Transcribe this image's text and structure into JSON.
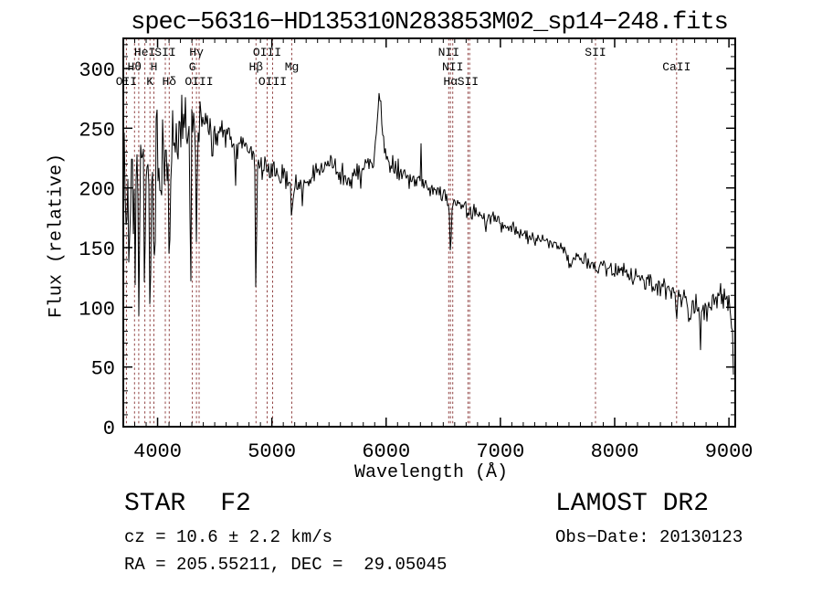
{
  "title": "spec−56316−HD135310N283853M02_sp14−248.fits",
  "footer": {
    "class_label": "STAR",
    "subclass": "F2",
    "cz_line": "cz = 10.6 ± 2.2 km/s",
    "radec_line": "RA = 205.55211, DEC =  29.05045",
    "survey": "LAMOST DR2",
    "obsdate_line": "Obs−Date: 20130123"
  },
  "chart_data": {
    "type": "line",
    "title": "spec−56316−HD135310N283853M02_sp14−248.fits",
    "xlabel": "Wavelength (Å)",
    "ylabel": "Flux (relative)",
    "xlim": [
      3700,
      9055
    ],
    "ylim": [
      0,
      325
    ],
    "xticks": [
      4000,
      5000,
      6000,
      7000,
      8000,
      9000
    ],
    "yticks": [
      0,
      50,
      100,
      150,
      200,
      250,
      300
    ],
    "x_minor_step": 100,
    "y_minor_step": 10,
    "grid": false,
    "legend": "none",
    "line_color": "#000000",
    "marker_line_color": "#924444",
    "spectral_lines": [
      {
        "wl": 3727,
        "label": "OII",
        "row": 3
      },
      {
        "wl": 3798,
        "label": "Hθ",
        "row": 2
      },
      {
        "wl": 3835,
        "label": "",
        "row": 0
      },
      {
        "wl": 3889,
        "label": "HeI",
        "row": 1
      },
      {
        "wl": 3933,
        "label": "K",
        "row": 3
      },
      {
        "wl": 3968,
        "label": "H",
        "row": 2
      },
      {
        "wl": 4068,
        "label": "SII",
        "row": 1
      },
      {
        "wl": 4102,
        "label": "Hδ",
        "row": 3
      },
      {
        "wl": 4304,
        "label": "G",
        "row": 2
      },
      {
        "wl": 4340,
        "label": "Hγ",
        "row": 1
      },
      {
        "wl": 4363,
        "label": "OIII",
        "row": 3
      },
      {
        "wl": 4861,
        "label": "Hβ",
        "row": 2
      },
      {
        "wl": 4959,
        "label": "OIII",
        "row": 1
      },
      {
        "wl": 5007,
        "label": "OIII",
        "row": 3
      },
      {
        "wl": 5175,
        "label": "Mg",
        "row": 2
      },
      {
        "wl": 6548,
        "label": "NII",
        "row": 1
      },
      {
        "wl": 6563,
        "label": "Hα",
        "row": 3
      },
      {
        "wl": 6583,
        "label": "NII",
        "row": 2
      },
      {
        "wl": 6716,
        "label": "SII",
        "row": 3
      },
      {
        "wl": 6731,
        "label": "",
        "row": 0
      },
      {
        "wl": 7832,
        "label": "SII",
        "row": 1
      },
      {
        "wl": 8542,
        "label": "CaII",
        "row": 2
      }
    ],
    "continuum_points": [
      [
        3700,
        205
      ],
      [
        3760,
        212
      ],
      [
        3800,
        218
      ],
      [
        3860,
        214
      ],
      [
        3920,
        214
      ],
      [
        3980,
        224
      ],
      [
        4050,
        234
      ],
      [
        4150,
        242
      ],
      [
        4250,
        250
      ],
      [
        4400,
        254
      ],
      [
        4500,
        247
      ],
      [
        4600,
        242
      ],
      [
        4700,
        238
      ],
      [
        4800,
        236
      ],
      [
        4900,
        222
      ],
      [
        5000,
        214
      ],
      [
        5100,
        209
      ],
      [
        5200,
        205
      ],
      [
        5300,
        206
      ],
      [
        5450,
        218
      ],
      [
        5520,
        223
      ],
      [
        5600,
        209
      ],
      [
        5680,
        203
      ],
      [
        5780,
        212
      ],
      [
        5860,
        220
      ],
      [
        5944,
        226
      ],
      [
        6020,
        222
      ],
      [
        6100,
        213
      ],
      [
        6250,
        207
      ],
      [
        6400,
        199
      ],
      [
        6500,
        193
      ],
      [
        6600,
        186
      ],
      [
        6700,
        183
      ],
      [
        6900,
        175
      ],
      [
        7100,
        166
      ],
      [
        7300,
        158
      ],
      [
        7500,
        150
      ],
      [
        7700,
        140
      ],
      [
        7900,
        133
      ],
      [
        8100,
        128
      ],
      [
        8300,
        121
      ],
      [
        8500,
        112
      ],
      [
        8650,
        104
      ],
      [
        8800,
        96
      ],
      [
        8900,
        104
      ],
      [
        8960,
        108
      ],
      [
        9000,
        102
      ],
      [
        9030,
        85
      ],
      [
        9055,
        30
      ]
    ],
    "features": [
      [
        3727,
        -50,
        8
      ],
      [
        3752,
        -65,
        6
      ],
      [
        3798,
        -75,
        7
      ],
      [
        3835,
        -85,
        6
      ],
      [
        3889,
        -80,
        6
      ],
      [
        3933,
        -105,
        6
      ],
      [
        3970,
        -95,
        6
      ],
      [
        4026,
        -35,
        5
      ],
      [
        4102,
        -105,
        7
      ],
      [
        4288,
        -165,
        4
      ],
      [
        4340,
        -85,
        7
      ],
      [
        4481,
        -28,
        6
      ],
      [
        4680,
        -45,
        5
      ],
      [
        4861,
        -112,
        6
      ],
      [
        5175,
        -20,
        12
      ],
      [
        5270,
        -14,
        8
      ],
      [
        5944,
        52,
        20
      ],
      [
        6304,
        40,
        3
      ],
      [
        6563,
        -44,
        6
      ],
      [
        6870,
        -10,
        10
      ],
      [
        7605,
        -10,
        10
      ],
      [
        8542,
        -14,
        7
      ],
      [
        8650,
        -18,
        6
      ],
      [
        8750,
        -26,
        7
      ],
      [
        8920,
        12,
        8
      ],
      [
        9050,
        -40,
        10
      ]
    ],
    "noise_profile": [
      [
        3700,
        60
      ],
      [
        3770,
        48
      ],
      [
        3990,
        30
      ],
      [
        4150,
        24
      ],
      [
        4450,
        20
      ],
      [
        4600,
        13
      ],
      [
        4800,
        11
      ],
      [
        5300,
        10
      ],
      [
        5900,
        9
      ],
      [
        6200,
        7
      ],
      [
        6600,
        5.5
      ],
      [
        7200,
        5
      ],
      [
        7600,
        6
      ],
      [
        8200,
        7
      ],
      [
        8500,
        9
      ],
      [
        8800,
        11
      ],
      [
        9055,
        10
      ]
    ]
  }
}
